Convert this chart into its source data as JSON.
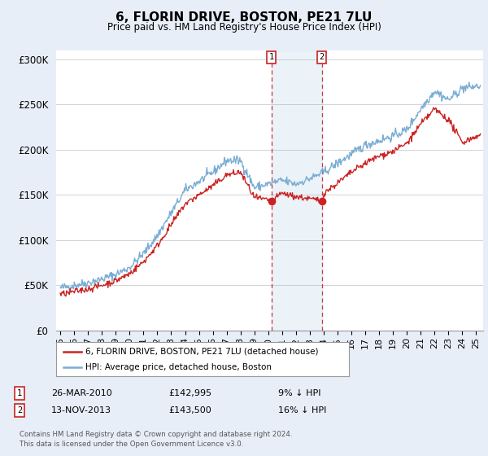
{
  "title": "6, FLORIN DRIVE, BOSTON, PE21 7LU",
  "subtitle": "Price paid vs. HM Land Registry's House Price Index (HPI)",
  "ylabel_ticks": [
    "£0",
    "£50K",
    "£100K",
    "£150K",
    "£200K",
    "£250K",
    "£300K"
  ],
  "ytick_values": [
    0,
    50000,
    100000,
    150000,
    200000,
    250000,
    300000
  ],
  "ylim": [
    0,
    310000
  ],
  "xlim_start": 1994.7,
  "xlim_end": 2025.5,
  "legend_line1": "6, FLORIN DRIVE, BOSTON, PE21 7LU (detached house)",
  "legend_line2": "HPI: Average price, detached house, Boston",
  "sale1_date": "26-MAR-2010",
  "sale1_price": "£142,995",
  "sale1_pct": "9% ↓ HPI",
  "sale2_date": "13-NOV-2013",
  "sale2_price": "£143,500",
  "sale2_pct": "16% ↓ HPI",
  "footnote": "Contains HM Land Registry data © Crown copyright and database right 2024.\nThis data is licensed under the Open Government Licence v3.0.",
  "hpi_color": "#7aadd4",
  "sale_color": "#cc2222",
  "vline1_x": 2010.23,
  "vline2_x": 2013.87,
  "background_color": "#e8eef8",
  "plot_bg_color": "#ffffff"
}
